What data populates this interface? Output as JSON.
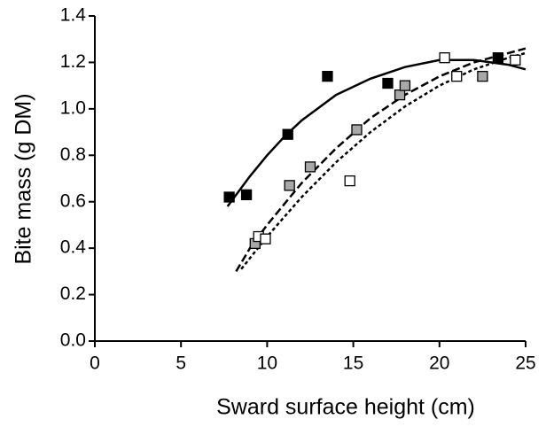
{
  "chart_data": {
    "type": "scatter",
    "x_label": "Sward surface height (cm)",
    "y_label": "Bite mass (g DM)",
    "xlim": [
      0,
      25
    ],
    "xticks": [
      0,
      5,
      10,
      15,
      20,
      25
    ],
    "ylim": [
      0,
      1.4
    ],
    "yticks": [
      {
        "value": 0,
        "label": "0.0"
      },
      0.2,
      0.4,
      0.6,
      0.8,
      {
        "value": 1,
        "label": "1.0"
      },
      1.2,
      1.4
    ],
    "series": [
      {
        "color": "#000000",
        "fill": "#000000",
        "x": [
          7.8,
          8.8,
          11.2,
          13.5,
          17.0,
          23.4
        ],
        "values": [
          0.62,
          0.63,
          0.89,
          1.14,
          1.11,
          1.22
        ]
      },
      {
        "color": "#000000",
        "fill": "#a8a8a8",
        "x": [
          9.3,
          11.3,
          12.5,
          15.2,
          17.7,
          18.0,
          22.5
        ],
        "values": [
          0.42,
          0.67,
          0.75,
          0.91,
          1.06,
          1.1,
          1.14
        ]
      },
      {
        "color": "#000000",
        "fill": "#ffffff",
        "x": [
          9.5,
          9.9,
          14.8,
          20.3,
          21.0,
          24.4
        ],
        "values": [
          0.45,
          0.44,
          0.69,
          1.22,
          1.14,
          1.21
        ]
      }
    ],
    "lines": [
      {
        "color": "#000000",
        "dash": "none",
        "x": [
          7.7,
          9,
          10,
          11,
          12,
          14,
          16,
          18,
          20,
          21,
          22,
          24,
          25
        ],
        "values": [
          0.58,
          0.71,
          0.8,
          0.88,
          0.95,
          1.06,
          1.13,
          1.18,
          1.21,
          1.21,
          1.21,
          1.19,
          1.17
        ]
      },
      {
        "color": "#000000",
        "dash": "9 4",
        "x": [
          8.2,
          9,
          10,
          11,
          12,
          14,
          16,
          18,
          20,
          22,
          24,
          25
        ],
        "values": [
          0.3,
          0.4,
          0.5,
          0.59,
          0.68,
          0.83,
          0.96,
          1.06,
          1.14,
          1.2,
          1.24,
          1.26
        ]
      },
      {
        "color": "#000000",
        "dash": "4 3",
        "x": [
          8.5,
          10,
          12,
          14,
          16,
          18,
          20,
          22,
          24,
          25
        ],
        "values": [
          0.31,
          0.45,
          0.62,
          0.77,
          0.9,
          1.01,
          1.1,
          1.17,
          1.22,
          1.24
        ]
      }
    ]
  }
}
